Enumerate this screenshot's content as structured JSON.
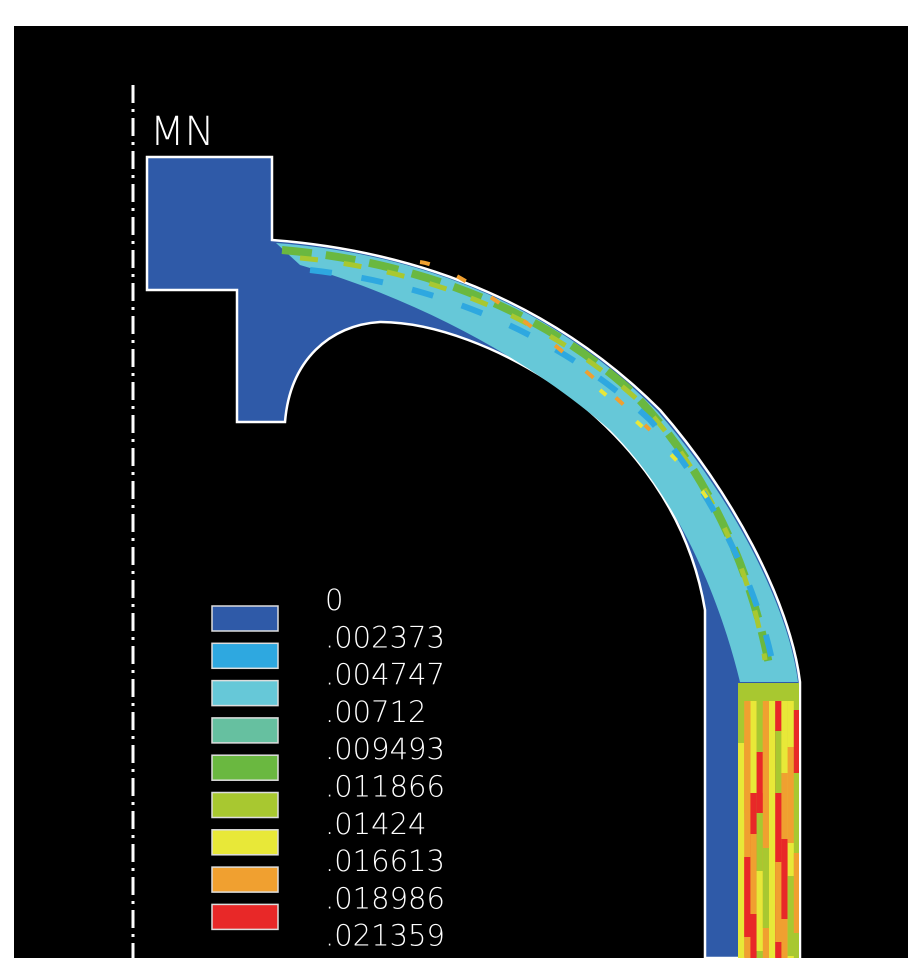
{
  "plot_label": "MN",
  "legend": [
    {
      "label": "0",
      "color": "#2f5aa8"
    },
    {
      "label": ".002373",
      "color": "#2ea8e0"
    },
    {
      "label": ".004747",
      "color": "#66c8d8"
    },
    {
      "label": ".00712",
      "color": "#66c0a0"
    },
    {
      "label": ".009493",
      "color": "#6ab840"
    },
    {
      "label": ".011866",
      "color": "#a8c830"
    },
    {
      "label": ".01424",
      "color": "#e8e838"
    },
    {
      "label": ".016613",
      "color": "#f0a030"
    },
    {
      "label": ".018986",
      "color": "#e82828"
    },
    {
      "label": ".021359",
      "color": null
    }
  ]
}
